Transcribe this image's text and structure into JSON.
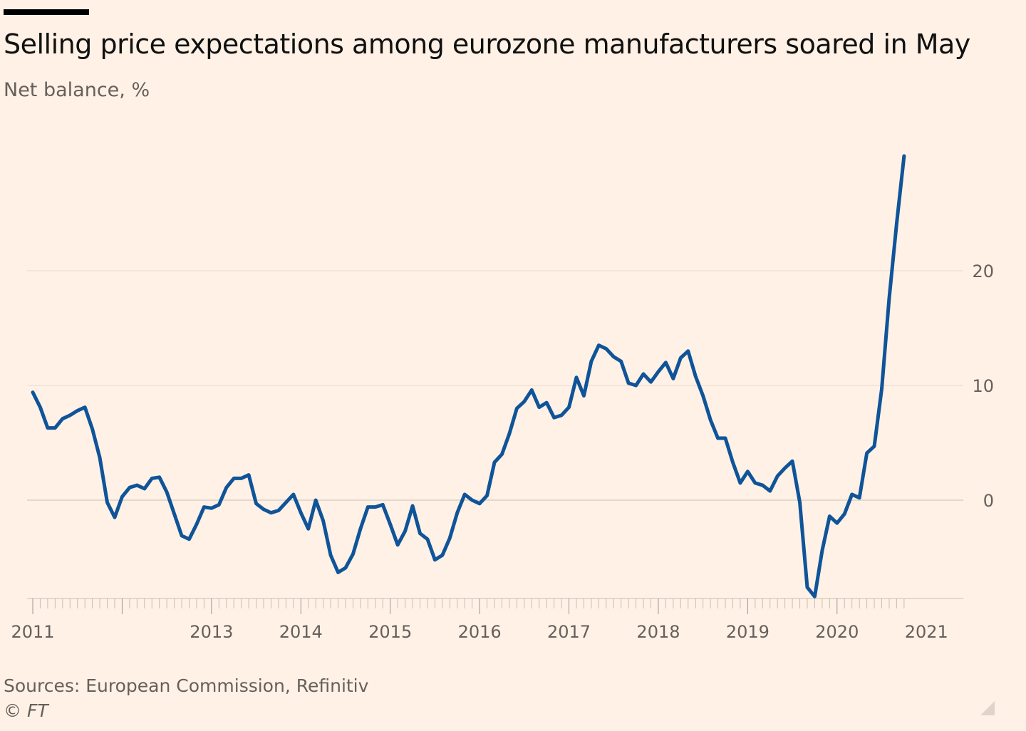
{
  "header": {
    "title": "Selling price expectations among eurozone manufacturers soared in May",
    "subtitle": "Net balance, %"
  },
  "footer": {
    "source": "Sources: European Commission, Refinitiv",
    "credit": "© FT"
  },
  "colors": {
    "background": "#fff1e5",
    "line": "#0f5499",
    "grid": "#e6d9ce",
    "text": "#66605c"
  },
  "chart_data": {
    "type": "line",
    "title": "Selling price expectations among eurozone manufacturers soared in May",
    "subtitle": "Net balance, %",
    "xlabel": "",
    "ylabel": "Net balance, %",
    "ylim": [
      -8.5,
      30
    ],
    "y_ticks": [
      0,
      10,
      20
    ],
    "x_tick_labels": [
      "2011",
      "2013",
      "2014",
      "2015",
      "2016",
      "2017",
      "2018",
      "2019",
      "2020",
      "2021"
    ],
    "x_tick_years": [
      2011,
      2013,
      2014,
      2015,
      2016,
      2017,
      2018,
      2019,
      2020,
      2021
    ],
    "x_start": 2011.0,
    "x_end": 2021.333,
    "grid": true,
    "legend": "none",
    "series": [
      {
        "name": "Selling price expectations",
        "start_year": 2011,
        "start_month": 1,
        "values": [
          9.4,
          8.1,
          6.3,
          6.3,
          7.1,
          7.4,
          7.8,
          8.1,
          6.2,
          3.7,
          -0.2,
          -1.5,
          0.3,
          1.1,
          1.3,
          1.0,
          1.9,
          2.0,
          0.7,
          -1.2,
          -3.1,
          -3.4,
          -2.1,
          -0.6,
          -0.7,
          -0.4,
          1.1,
          1.9,
          1.9,
          2.2,
          -0.3,
          -0.8,
          -1.1,
          -0.9,
          -0.2,
          0.5,
          -1.1,
          -2.5,
          0.0,
          -1.8,
          -4.8,
          -6.3,
          -5.9,
          -4.7,
          -2.5,
          -0.6,
          -0.6,
          -0.4,
          -2.1,
          -3.9,
          -2.7,
          -0.5,
          -2.9,
          -3.4,
          -5.2,
          -4.8,
          -3.3,
          -1.1,
          0.5,
          0.0,
          -0.3,
          0.4,
          3.3,
          4.0,
          5.8,
          8.0,
          8.6,
          9.6,
          8.1,
          8.5,
          7.2,
          7.4,
          8.1,
          10.7,
          9.1,
          12.1,
          13.5,
          13.2,
          12.5,
          12.1,
          10.2,
          10.0,
          11.0,
          10.3,
          11.2,
          12.0,
          10.6,
          12.4,
          13.0,
          10.8,
          9.1,
          7.0,
          5.4,
          5.4,
          3.3,
          1.5,
          2.5,
          1.5,
          1.3,
          0.8,
          2.1,
          2.8,
          3.4,
          -0.2,
          -7.6,
          -8.4,
          -4.4,
          -1.4,
          -2.0,
          -1.2,
          0.5,
          0.2,
          4.1,
          4.7,
          9.7,
          17.6,
          24.1,
          30.0
        ]
      }
    ]
  }
}
